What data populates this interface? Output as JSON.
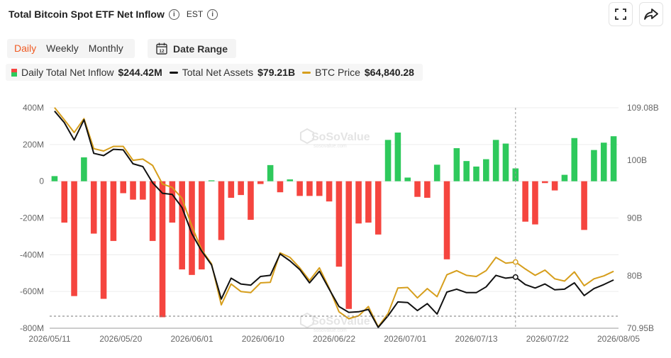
{
  "header": {
    "title": "Total Bitcoin Spot ETF Net Inflow",
    "timezone": "EST"
  },
  "tabs": [
    {
      "label": "Daily",
      "active": true
    },
    {
      "label": "Weekly",
      "active": false
    },
    {
      "label": "Monthly",
      "active": false
    }
  ],
  "date_range": {
    "label": "Date Range",
    "icon_text": "12"
  },
  "legend": {
    "inflow": {
      "label": "Daily Total Net Inflow",
      "value": "$244.42M"
    },
    "assets": {
      "label": "Total Net Assets",
      "value": "$79.21B"
    },
    "price": {
      "label": "BTC Price",
      "value": "$64,840.28"
    }
  },
  "watermark": {
    "name": "SoSoValue",
    "sub": "sosovalue.com"
  },
  "colors": {
    "positive": "#2ec95c",
    "negative": "#f5453f",
    "assets": "#111111",
    "price": "#d69e1c",
    "accent": "#f05a22"
  },
  "icons": [
    "info-icon",
    "expand-icon",
    "share-icon",
    "calendar-icon"
  ],
  "chart_data": {
    "type": "bar",
    "x_ticks": [
      "2026/05/11",
      "2026/05/20",
      "2026/06/01",
      "2026/06/10",
      "2026/06/22",
      "2026/07/01",
      "2026/07/13",
      "2026/07/22",
      "2026/08/05"
    ],
    "left_axis": {
      "ticks": [
        "400M",
        "200M",
        "0",
        "-200M",
        "-400M",
        "-600M",
        "-800M"
      ],
      "ylim": [
        -800,
        400
      ],
      "unit": "M"
    },
    "right_axis": {
      "ticks": [
        "109.08B",
        "100B",
        "90B",
        "80B",
        "70.95B"
      ],
      "ylim": [
        70.95,
        109.08
      ],
      "unit": "B"
    },
    "grid": true,
    "crosshair_date": "2026/07/22",
    "series": [
      {
        "name": "Daily Total Net Inflow",
        "type": "bar",
        "axis": "left",
        "values": [
          28,
          -225,
          -625,
          130,
          -285,
          -640,
          -325,
          -65,
          -100,
          -100,
          -325,
          -740,
          -225,
          -480,
          -510,
          -480,
          5,
          -320,
          -90,
          -75,
          -210,
          -15,
          88,
          -60,
          10,
          -80,
          -80,
          -80,
          -110,
          -465,
          -695,
          -230,
          -225,
          -290,
          225,
          265,
          20,
          -85,
          -90,
          90,
          -425,
          180,
          110,
          80,
          120,
          225,
          205,
          70,
          -220,
          -235,
          -10,
          -50,
          35,
          235,
          -265,
          170,
          210,
          245
        ]
      },
      {
        "name": "Total Net Assets",
        "type": "line",
        "axis": "right",
        "values": [
          108.5,
          106.5,
          103.5,
          107,
          101.2,
          100.8,
          101.9,
          101.8,
          99.4,
          98.9,
          96.1,
          94.3,
          94.1,
          91.8,
          87.3,
          84.3,
          81.9,
          76,
          79.6,
          78.6,
          78.4,
          79.9,
          80.1,
          83.8,
          82.6,
          81.1,
          78.8,
          80.8,
          77.7,
          74.7,
          73.7,
          73.8,
          74.2,
          71.1,
          73.1,
          75.5,
          75.4,
          74,
          75.2,
          73.4,
          77.2,
          77.7,
          77.1,
          77.1,
          78.1,
          80.1,
          79.6,
          79.8,
          78.5,
          77.9,
          78.6,
          77.6,
          77.7,
          78.8,
          76.6,
          77.8,
          78.5,
          79.3
        ]
      },
      {
        "name": "BTC Price",
        "type": "line",
        "axis": "right",
        "values": [
          109.1,
          107,
          104.8,
          107.2,
          102,
          101.6,
          102.4,
          102.4,
          100,
          100.2,
          99.1,
          95.9,
          95.3,
          93.4,
          88.6,
          84.5,
          82.1,
          75,
          78.6,
          77.3,
          77.1,
          78.8,
          78.9,
          84,
          83.2,
          81.4,
          79.2,
          81.4,
          77.9,
          73.8,
          72.6,
          73.1,
          74.7,
          71.2,
          73.5,
          77.9,
          78,
          76.2,
          77.8,
          76.4,
          80.2,
          80.9,
          80.1,
          79.9,
          80.9,
          83.2,
          82.2,
          82.4,
          81.2,
          80.1,
          81,
          79.5,
          79.1,
          80.7,
          78.3,
          79.5,
          80,
          80.8
        ]
      }
    ]
  }
}
